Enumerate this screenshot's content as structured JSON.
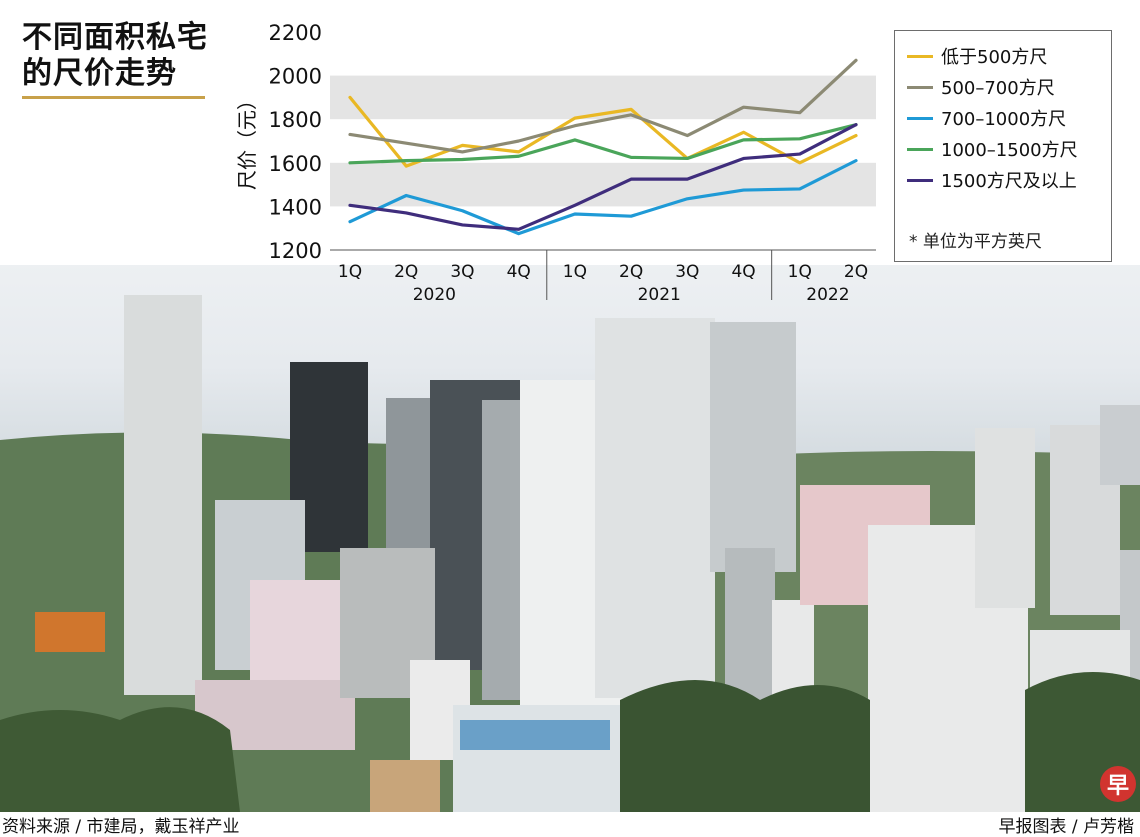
{
  "title": {
    "line1": "不同面积私宅",
    "line2": "的尺价走势"
  },
  "chart_data": {
    "type": "line",
    "ylabel": "尺价（元）",
    "ylim": [
      1200,
      2200
    ],
    "yticks": [
      1200,
      1400,
      1600,
      1800,
      2000,
      2200
    ],
    "grid": "alternating horizontal bands",
    "legend_position": "right",
    "categories": [
      "1Q",
      "2Q",
      "3Q",
      "4Q",
      "1Q",
      "2Q",
      "3Q",
      "4Q",
      "1Q",
      "2Q"
    ],
    "year_groups": [
      {
        "label": "2020",
        "count": 4
      },
      {
        "label": "2021",
        "count": 4
      },
      {
        "label": "2022",
        "count": 2
      }
    ],
    "series": [
      {
        "name": "低于500方尺",
        "color": "#e9b824",
        "values": [
          1900,
          1585,
          1680,
          1650,
          1805,
          1845,
          1620,
          1740,
          1600,
          1725
        ]
      },
      {
        "name": "500–700方尺",
        "color": "#8c8a74",
        "values": [
          1730,
          1690,
          1650,
          1700,
          1770,
          1820,
          1725,
          1855,
          1830,
          2070
        ]
      },
      {
        "name": "700–1000方尺",
        "color": "#1f9ad6",
        "values": [
          1330,
          1450,
          1380,
          1275,
          1365,
          1355,
          1435,
          1475,
          1480,
          1610
        ]
      },
      {
        "name": "1000–1500方尺",
        "color": "#4aa55a",
        "values": [
          1600,
          1610,
          1615,
          1630,
          1705,
          1625,
          1620,
          1705,
          1710,
          1775
        ]
      },
      {
        "name": "1500方尺及以上",
        "color": "#3f2d7c",
        "values": [
          1405,
          1370,
          1315,
          1295,
          1405,
          1525,
          1525,
          1620,
          1640,
          1775
        ]
      }
    ],
    "note": "* 单位为平方英尺"
  },
  "footer": {
    "source": "资料来源 / 市建局，戴玉祥产业",
    "credit": "早报图表 / 卢芳楷"
  },
  "logo": {
    "text": "早",
    "color": "#d1342f"
  }
}
